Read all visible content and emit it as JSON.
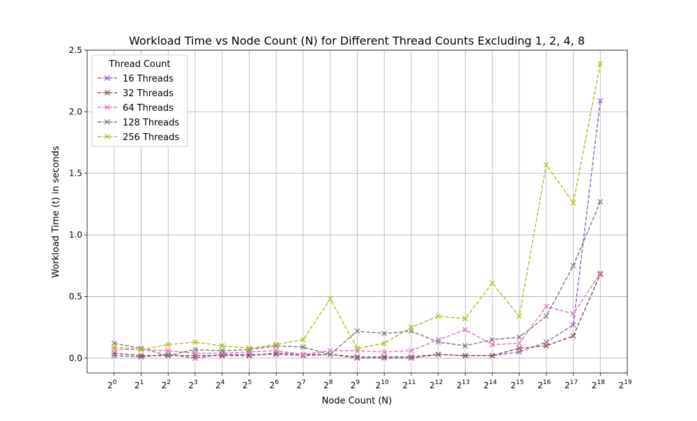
{
  "chart_data": {
    "type": "line",
    "title": "Workload Time vs Node Count (N) for Different Thread Counts Excluding 1, 2, 4, 8",
    "xlabel": "Node Count (N)",
    "ylabel": "Workload Time (t) in seconds",
    "x_scale": "log2",
    "x_tick_base": "2",
    "x_tick_exponents": [
      0,
      1,
      2,
      3,
      4,
      5,
      6,
      7,
      8,
      9,
      10,
      11,
      12,
      13,
      14,
      15,
      16,
      17,
      18,
      19
    ],
    "x": [
      1,
      2,
      4,
      8,
      16,
      32,
      64,
      128,
      256,
      512,
      1024,
      2048,
      4096,
      8192,
      16384,
      32768,
      65536,
      131072,
      262144
    ],
    "xlim": [
      0.5,
      524288
    ],
    "ylim": [
      -0.12,
      2.5
    ],
    "y_ticks": [
      "0.0",
      "0.5",
      "1.0",
      "1.5",
      "2.0",
      "2.5"
    ],
    "grid": true,
    "legend": {
      "title": "Thread Count",
      "placement": "top-left"
    },
    "series": [
      {
        "name": "16 Threads",
        "color": "#9467bd",
        "marker": "x",
        "linestyle": "dashed",
        "values": [
          0.02,
          0.01,
          0.03,
          0.0,
          0.03,
          0.03,
          0.03,
          0.02,
          0.03,
          0.0,
          0.0,
          0.0,
          0.03,
          0.02,
          0.02,
          0.05,
          0.13,
          0.27,
          2.09
        ]
      },
      {
        "name": "32 Threads",
        "color": "#8c564b",
        "marker": "x",
        "linestyle": "dashed",
        "values": [
          0.04,
          0.02,
          0.02,
          0.02,
          0.02,
          0.02,
          0.04,
          0.03,
          0.03,
          0.01,
          0.01,
          0.01,
          0.03,
          0.02,
          0.02,
          0.08,
          0.1,
          0.18,
          0.68
        ]
      },
      {
        "name": "64 Threads",
        "color": "#e377c2",
        "marker": "x",
        "linestyle": "dashed",
        "values": [
          0.07,
          0.07,
          0.06,
          0.04,
          0.04,
          0.05,
          0.06,
          0.03,
          0.06,
          0.06,
          0.05,
          0.06,
          0.15,
          0.23,
          0.11,
          0.12,
          0.42,
          0.36,
          0.69
        ]
      },
      {
        "name": "128 Threads",
        "color": "#7f7f7f",
        "marker": "x",
        "linestyle": "dashed",
        "values": [
          0.12,
          0.08,
          0.02,
          0.07,
          0.06,
          0.07,
          0.1,
          0.09,
          0.03,
          0.22,
          0.2,
          0.22,
          0.13,
          0.1,
          0.15,
          0.17,
          0.34,
          0.75,
          1.27
        ]
      },
      {
        "name": "256 Threads",
        "color": "#bcbd22",
        "marker": "x",
        "linestyle": "dashed",
        "values": [
          0.09,
          0.07,
          0.11,
          0.13,
          0.1,
          0.08,
          0.11,
          0.15,
          0.48,
          0.08,
          0.12,
          0.25,
          0.34,
          0.32,
          0.61,
          0.34,
          1.57,
          1.26,
          2.39
        ]
      }
    ]
  }
}
